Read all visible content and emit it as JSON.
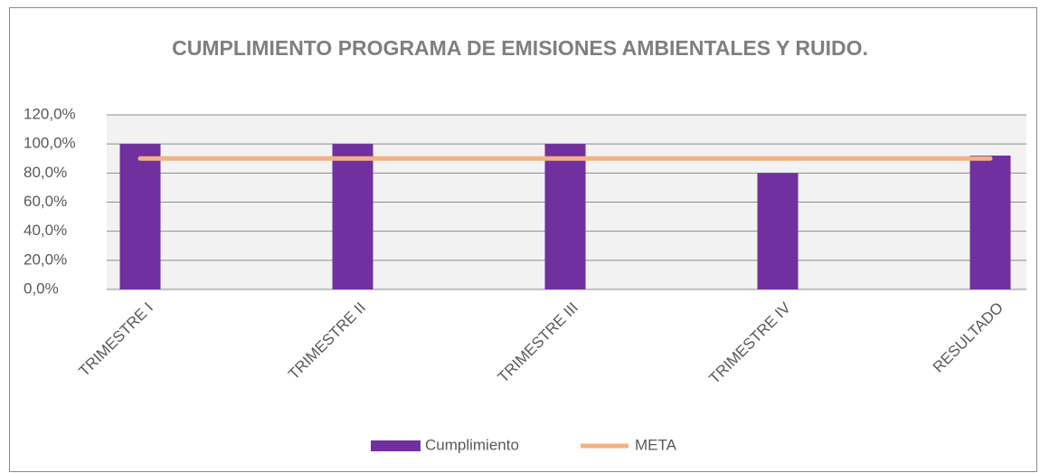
{
  "chart_data": {
    "type": "bar_line",
    "title": "CUMPLIMIENTO PROGRAMA DE EMISIONES AMBIENTALES Y RUIDO.",
    "categories": [
      "TRIMESTRE I",
      "TRIMESTRE II",
      "TRIMESTRE III",
      "TRIMESTRE IV",
      "RESULTADO"
    ],
    "series": [
      {
        "name": "Cumplimiento",
        "type": "bar",
        "color": "#7030a0",
        "values": [
          100,
          100,
          100,
          80,
          92
        ]
      },
      {
        "name": "META",
        "type": "line",
        "color": "#f4b183",
        "values": [
          90,
          90,
          90,
          90,
          90
        ]
      }
    ],
    "ylim": [
      0,
      120
    ],
    "yticks": [
      {
        "value": 0,
        "label": "0,0%"
      },
      {
        "value": 20,
        "label": "20,0%"
      },
      {
        "value": 40,
        "label": "40,0%"
      },
      {
        "value": 60,
        "label": "60,0%"
      },
      {
        "value": 80,
        "label": "80,0%"
      },
      {
        "value": 100,
        "label": "100,0%"
      },
      {
        "value": 120,
        "label": "120,0%"
      }
    ],
    "grid": true,
    "legend": "bottom"
  }
}
